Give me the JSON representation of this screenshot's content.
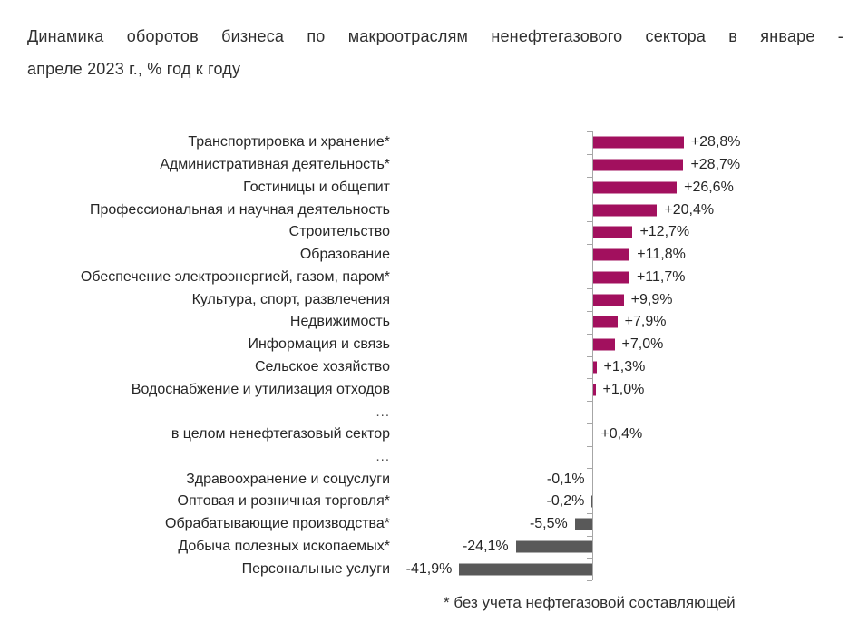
{
  "title": {
    "line1": "Динамика оборотов бизнеса по макроотраслям ненефтегазового сектора в январе -",
    "line2": "апреле 2023 г., % год к году",
    "full": "Динамика оборотов бизнеса по макроотраслям ненефтегазового сектора в январе - апреле 2023 г., % год к году"
  },
  "footnote": "* без учета нефтегазовой составляющей",
  "colors": {
    "positive_bar": "#a2105e",
    "negative_bar": "#595959",
    "axis": "#a6a6a6",
    "text": "#262626"
  },
  "chart_data": {
    "type": "bar",
    "orientation": "horizontal",
    "title": "Динамика оборотов бизнеса по макроотраслям ненефтегазового сектора в январе - апреле 2023 г., % год к году",
    "xlabel": "",
    "ylabel": "",
    "value_unit": "% год к году",
    "xlim": [
      -45,
      32
    ],
    "grid": false,
    "legend": "none",
    "positive_color": "#a2105e",
    "negative_color": "#595959",
    "rows": [
      {
        "label": "Транспортировка и хранение*",
        "value": 28.8,
        "display": "+28,8%"
      },
      {
        "label": "Административная деятельность*",
        "value": 28.7,
        "display": "+28,7%"
      },
      {
        "label": "Гостиницы и общепит",
        "value": 26.6,
        "display": "+26,6%"
      },
      {
        "label": "Профессиональная и научная деятельность",
        "value": 20.4,
        "display": "+20,4%"
      },
      {
        "label": "Строительство",
        "value": 12.7,
        "display": "+12,7%"
      },
      {
        "label": "Образование",
        "value": 11.8,
        "display": "+11,8%"
      },
      {
        "label": "Обеспечение электроэнергией, газом, паром*",
        "value": 11.7,
        "display": "+11,7%"
      },
      {
        "label": "Культура, спорт, развлечения",
        "value": 9.9,
        "display": "+9,9%"
      },
      {
        "label": "Недвижимость",
        "value": 7.9,
        "display": "+7,9%"
      },
      {
        "label": "Информация и связь",
        "value": 7.0,
        "display": "+7,0%"
      },
      {
        "label": "Сельское хозяйство",
        "value": 1.3,
        "display": "+1,3%"
      },
      {
        "label": "Водоснабжение и утилизация отходов",
        "value": 1.0,
        "display": "+1,0%"
      },
      {
        "label": "...",
        "value": null,
        "display": ""
      },
      {
        "label": "в целом ненефтегазовый сектор",
        "value": 0.4,
        "display": "+0,4%"
      },
      {
        "label": "...",
        "value": null,
        "display": ""
      },
      {
        "label": "Здравоохранение и соцуслуги",
        "value": -0.1,
        "display": "-0,1%"
      },
      {
        "label": "Оптовая и розничная торговля*",
        "value": -0.2,
        "display": "-0,2%"
      },
      {
        "label": "Обрабатывающие производства*",
        "value": -5.5,
        "display": "-5,5%"
      },
      {
        "label": "Добыча полезных ископаемых*",
        "value": -24.1,
        "display": "-24,1%"
      },
      {
        "label": "Персональные услуги",
        "value": -41.9,
        "display": "-41,9%"
      }
    ],
    "footnote": "* без учета нефтегазовой составляющей"
  }
}
